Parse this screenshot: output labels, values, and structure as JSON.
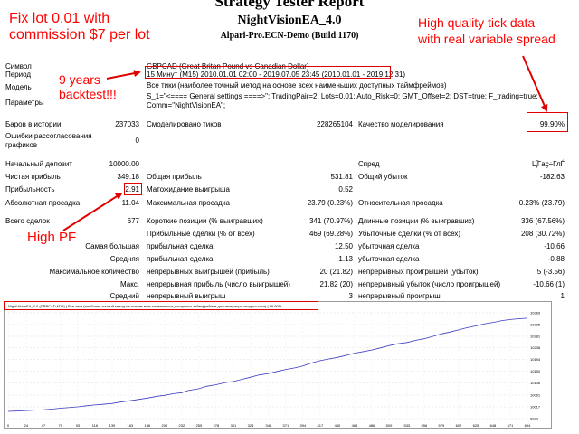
{
  "header": {
    "title": "Strategy Tester Report",
    "ea_name": "NightVisionEA_4.0",
    "broker": "Alpari-Pro.ECN-Demo (Build 1170)"
  },
  "annotations": {
    "lot_line1": "Fix lot 0.01 with",
    "lot_line2": "commission $7 per lot",
    "years_line1": "9 years",
    "years_line2": "backtest!!!",
    "tick_line1": "High quality tick data",
    "tick_line2": "with real variable spread",
    "high_pf": "High PF"
  },
  "info": {
    "symbol_label": "Символ",
    "symbol_value": "GBPCAD (Great Britan Pound vs Canadian Dollar)",
    "period_label": "Период",
    "period_value": "15 Минут (M15) 2010.01.01 02:00 - 2019.07.05 23:45 (2010.01.01 - 2019.12.31)",
    "model_label": "Модель",
    "model_value": "Все тики (наиболее точный метод на основе всех наименьших доступных таймфреймов)",
    "params_label": "Параметры",
    "params_value": "S_1=\"<==== General settings ====>\"; TradingPair=2; Lots=0.01; Auto_Risk=0; GMT_Offset=2; DST=true; F_trading=true; Comm=\"NightVisionEA\";"
  },
  "quality": {
    "bars_label": "Баров в истории",
    "bars_value": "237033",
    "ticks_label": "Смоделировано тиков",
    "ticks_value": "228265104",
    "quality_label": "Качество моделирования",
    "quality_value": "99.90%",
    "errors_label": "Ошибки рассогласования графиков",
    "errors_value": "0"
  },
  "results": {
    "deposit_label": "Начальный депозит",
    "deposit_value": "10000.00",
    "spread_label": "Спред",
    "spread_value": "Ц҇Гaҫ÷ГлЃ",
    "net_label": "Чистая прибыль",
    "net_value": "349.18",
    "gross_profit_label": "Общая прибыль",
    "gross_profit_value": "531.81",
    "gross_loss_label": "Общий убыток",
    "gross_loss_value": "-182.63",
    "pf_label": "Прибыльность",
    "pf_value": "2.91",
    "payoff_label": "Матожидание выигрыша",
    "payoff_value": "0.52",
    "abs_dd_label": "Абсолютная просадка",
    "abs_dd_value": "11.04",
    "max_dd_label": "Максимальная просадка",
    "max_dd_value": "23.79 (0.23%)",
    "rel_dd_label": "Относительная просадка",
    "rel_dd_value": "0.23% (23.79)"
  },
  "trades": {
    "total_label": "Всего сделок",
    "total_value": "677",
    "short_label": "Короткие позиции (% выигравших)",
    "short_value": "341 (70.97%)",
    "long_label": "Длинные позиции (% выигравших)",
    "long_value": "336 (67.56%)",
    "profit_trades_label": "Прибыльные сделки (% от всех)",
    "profit_trades_value": "469 (69.28%)",
    "loss_trades_label": "Убыточные сделки (% от всех)",
    "loss_trades_value": "208 (30.72%)",
    "largest_label": "Самая большая",
    "largest_profit_label": "прибыльная сделка",
    "largest_profit_value": "12.50",
    "largest_loss_label": "убыточная сделка",
    "largest_loss_value": "-10.66",
    "average_label": "Средняя",
    "average_profit_label": "прибыльная сделка",
    "average_profit_value": "1.13",
    "average_loss_label": "убыточная сделка",
    "average_loss_value": "-0.88",
    "max_count_label": "Максимальное количество",
    "max_wins_label": "непрерывных выигрышей (прибыль)",
    "max_wins_value": "20 (21.82)",
    "max_losses_label": "непрерывных проигрышей (убыток)",
    "max_losses_value": "5 (-3.56)",
    "maximal_label": "Макс.",
    "max_profit_label": "непрерывная прибыль (число выигрышей)",
    "max_profit_value": "21.82 (20)",
    "max_loss_label": "непрерывный убыток (число проигрышей)",
    "max_loss_value": "-10.66 (1)",
    "avg_cons_label": "Средний",
    "avg_cons_wins_label": "непрерывный выигрыш",
    "avg_cons_wins_value": "3",
    "avg_cons_losses_label": "непрерывный проигрыш",
    "avg_cons_losses_value": "1"
  },
  "chart_data": {
    "type": "line",
    "legend": "NightVisionEA_4.0 (GBPCAD,M15) | Все тики (наиболее точный метод на основе всех наименьших доступных таймфреймов для генерации каждого тика) | 99.90%",
    "y_ticks": [
      "10369",
      "10325",
      "10281",
      "10238",
      "10194",
      "10150",
      "10106",
      "10061",
      "10017",
      "9973"
    ],
    "x_ticks": [
      "0",
      "24",
      "47",
      "70",
      "93",
      "116",
      "139",
      "163",
      "186",
      "209",
      "232",
      "255",
      "278",
      "301",
      "324",
      "348",
      "371",
      "394",
      "417",
      "440",
      "463",
      "486",
      "509",
      "533",
      "556",
      "579",
      "602",
      "625",
      "648",
      "671",
      "694"
    ],
    "ylim": [
      9973,
      10369
    ],
    "xlim": [
      0,
      694
    ],
    "line_color": "#3b3bbf",
    "series": [
      {
        "x": [
          0,
          10,
          24,
          40,
          47,
          60,
          70,
          80,
          93,
          105,
          116,
          125,
          139,
          150,
          163,
          175,
          186,
          200,
          209,
          220,
          232,
          240,
          255,
          265,
          278,
          290,
          301,
          312,
          324,
          335,
          348,
          360,
          371,
          383,
          394,
          405,
          417,
          428,
          440,
          452,
          463,
          475,
          486,
          498,
          509,
          520,
          533,
          545,
          556,
          568,
          579,
          590,
          602,
          613,
          625,
          637,
          648,
          660,
          671,
          683,
          694
        ],
        "y": [
          10000,
          10001,
          10003,
          10005,
          10006,
          10009,
          10012,
          10014,
          10017,
          10021,
          10024,
          10026,
          10030,
          10035,
          10040,
          10045,
          10050,
          10057,
          10060,
          10066,
          10070,
          10078,
          10085,
          10094,
          10100,
          10108,
          10112,
          10120,
          10128,
          10136,
          10142,
          10150,
          10157,
          10163,
          10170,
          10181,
          10190,
          10196,
          10202,
          10210,
          10218,
          10224,
          10230,
          10238,
          10246,
          10253,
          10258,
          10266,
          10272,
          10281,
          10290,
          10297,
          10305,
          10313,
          10320,
          10328,
          10333,
          10340,
          10344,
          10347,
          10349
        ]
      }
    ]
  }
}
